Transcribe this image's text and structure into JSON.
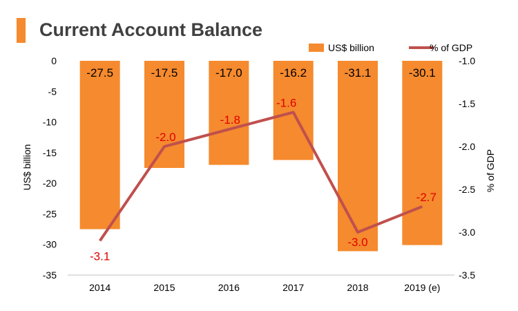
{
  "header": {
    "title": "Current Account Balance",
    "accent_color": "#F58A2E"
  },
  "chart_data": {
    "type": "bar",
    "categories": [
      "2014",
      "2015",
      "2016",
      "2017",
      "2018",
      "2019 (e)"
    ],
    "series": [
      {
        "name": "US$ billion",
        "type": "bar",
        "axis": "left",
        "color": "#F58A2E",
        "values": [
          -27.5,
          -17.5,
          -17.0,
          -16.2,
          -31.1,
          -30.1
        ],
        "labels": [
          "-27.5",
          "-17.5",
          "-17.0",
          "-16.2",
          "-31.1",
          "-30.1"
        ],
        "label_color": "#000000"
      },
      {
        "name": "% of GDP",
        "type": "line",
        "axis": "right",
        "color": "#C0504D",
        "values": [
          -3.1,
          -2.0,
          -1.8,
          -1.6,
          -3.0,
          -2.7
        ],
        "labels": [
          "-3.1",
          "-2.0",
          "-1.8",
          "-1.6",
          "-3.0",
          "-2.7"
        ],
        "label_color": "#E00000"
      }
    ],
    "ylabel": "US$ billion",
    "ylim": [
      -35,
      0
    ],
    "yticks": [
      "0",
      "-5",
      "-10",
      "-15",
      "-20",
      "-25",
      "-30",
      "-35"
    ],
    "y2label": "% of GDP",
    "y2lim": [
      -3.5,
      -1.0
    ],
    "y2ticks": [
      "-1.0",
      "-1.5",
      "-2.0",
      "-2.5",
      "-3.0",
      "-3.5"
    ],
    "legend_position": "top-right",
    "grid": false
  }
}
